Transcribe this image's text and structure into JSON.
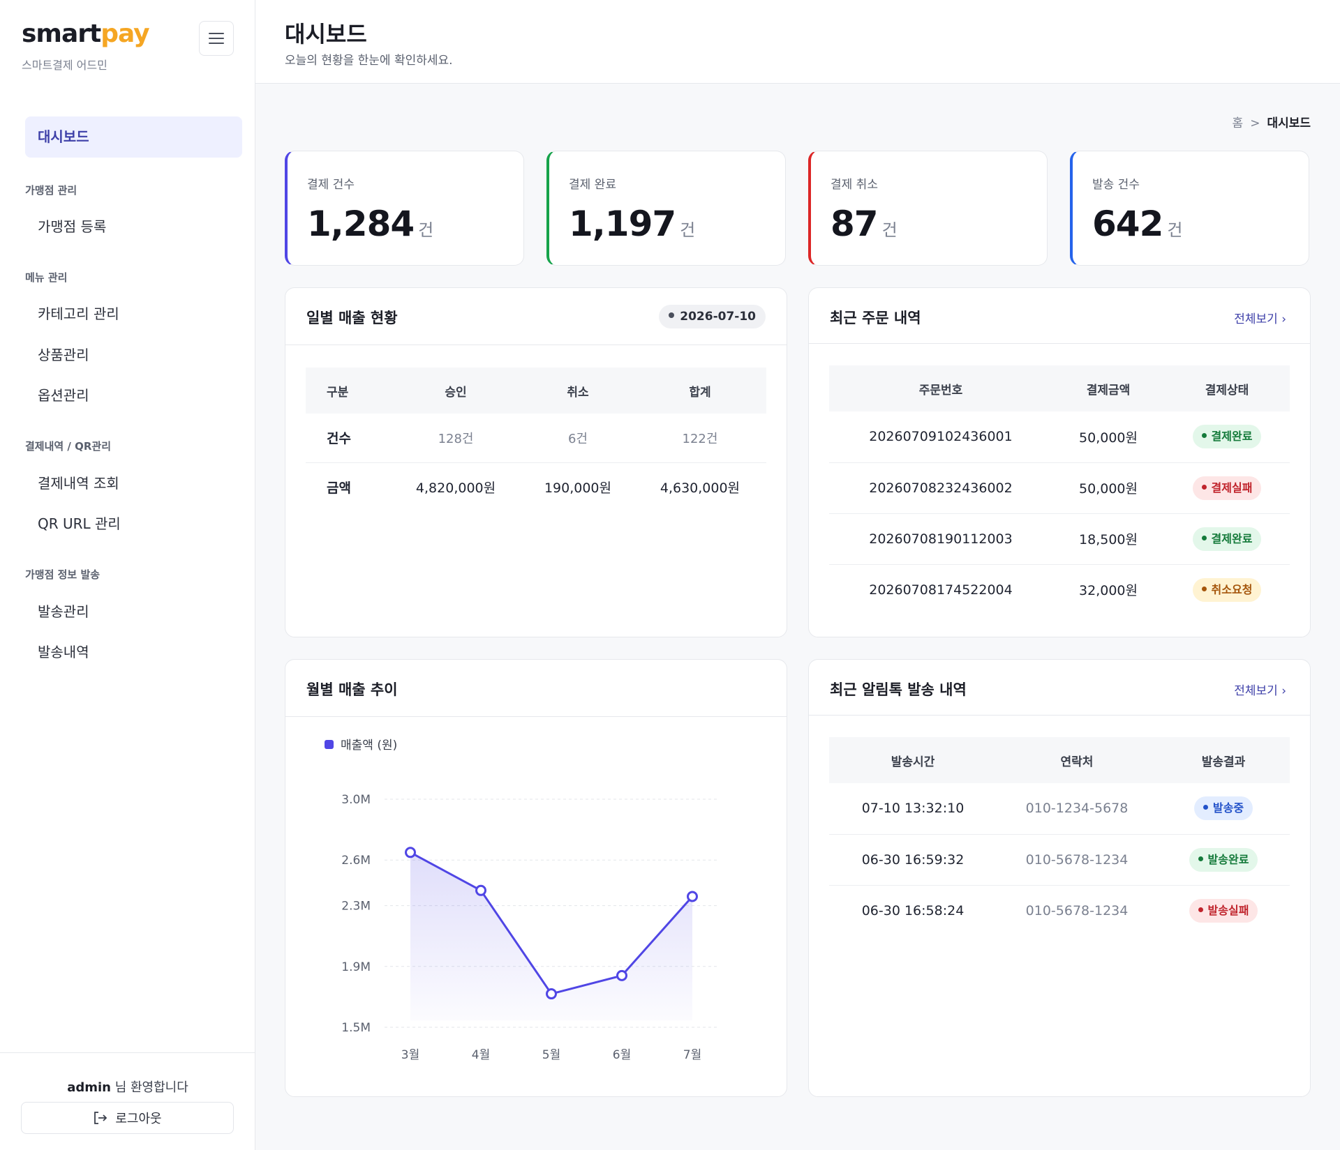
{
  "brand": {
    "logo_a": "smart",
    "logo_b": "pay",
    "subtitle": "스마트결제 어드민"
  },
  "sidebar": {
    "active": "대시보드",
    "groups": [
      {
        "title": "가맹점 관리",
        "items": [
          "가맹점 등록"
        ]
      },
      {
        "title": "메뉴 관리",
        "items": [
          "카테고리 관리",
          "상품관리",
          "옵션관리"
        ]
      },
      {
        "title": "결제내역 / QR관리",
        "items": [
          "결제내역 조회",
          "QR URL 관리"
        ]
      },
      {
        "title": "가맹점 정보 발송",
        "items": [
          "발송관리",
          "발송내역"
        ]
      }
    ],
    "user": "admin",
    "welcome_suffix": " 님 환영합니다",
    "logout": "로그아웃"
  },
  "header": {
    "title": "대시보드",
    "subtitle": "오늘의 현황을 한눈에 확인하세요."
  },
  "breadcrumb": {
    "home": "홈",
    "sep": ">",
    "current": "대시보드"
  },
  "stats": [
    {
      "label": "결제 건수",
      "value": "1,284",
      "unit": "건",
      "color": "#5046e5"
    },
    {
      "label": "결제 완료",
      "value": "1,197",
      "unit": "건",
      "color": "#16a34a"
    },
    {
      "label": "결제 취소",
      "value": "87",
      "unit": "건",
      "color": "#dc2626"
    },
    {
      "label": "발송 건수",
      "value": "642",
      "unit": "건",
      "color": "#2563eb"
    }
  ],
  "daily_sales": {
    "title": "일별 매출 현황",
    "date": "2026-07-10",
    "headers": [
      "구분",
      "승인",
      "취소",
      "합계"
    ],
    "rows": [
      [
        "건수",
        "128건",
        "6건",
        "122건"
      ],
      [
        "금액",
        "4,820,000원",
        "190,000원",
        "4,630,000원"
      ]
    ]
  },
  "recent_orders": {
    "title": "최근 주문 내역",
    "view_all": "전체보기",
    "headers": [
      "주문번호",
      "결제금액",
      "결제상태"
    ],
    "rows": [
      {
        "no": "20260709102436001",
        "amount": "50,000원",
        "status": "결제완료",
        "tone": "green"
      },
      {
        "no": "20260708232436002",
        "amount": "50,000원",
        "status": "결제실패",
        "tone": "red"
      },
      {
        "no": "20260708190112003",
        "amount": "18,500원",
        "status": "결제완료",
        "tone": "green"
      },
      {
        "no": "20260708174522004",
        "amount": "32,000원",
        "status": "취소요청",
        "tone": "yellow"
      }
    ]
  },
  "monthly": {
    "title": "월별 매출 추이",
    "chart_data": {
      "type": "line",
      "categories": [
        "3월",
        "4월",
        "5월",
        "6월",
        "7월"
      ],
      "series": [
        {
          "name": "매출액 (원)",
          "values": [
            2650000,
            2400000,
            1720000,
            1840000,
            2360000
          ]
        }
      ],
      "yticks": [
        1500000,
        1900000,
        2300000,
        2600000,
        3000000
      ],
      "ytick_labels": [
        "1.5M",
        "1.9M",
        "2.3M",
        "2.6M",
        "3.0M"
      ],
      "ylim": [
        1500000,
        3000000
      ],
      "grid": true,
      "legend": "top-left",
      "color": "#5046e5"
    }
  },
  "alimtalk": {
    "title": "최근 알림톡 발송 내역",
    "view_all": "전체보기",
    "headers": [
      "발송시간",
      "연락처",
      "발송결과"
    ],
    "rows": [
      {
        "time": "07-10 13:32:10",
        "phone": "010-1234-5678",
        "status": "발송중",
        "tone": "blue"
      },
      {
        "time": "06-30 16:59:32",
        "phone": "010-5678-1234",
        "status": "발송완료",
        "tone": "green"
      },
      {
        "time": "06-30 16:58:24",
        "phone": "010-5678-1234",
        "status": "발송실패",
        "tone": "red"
      }
    ]
  }
}
